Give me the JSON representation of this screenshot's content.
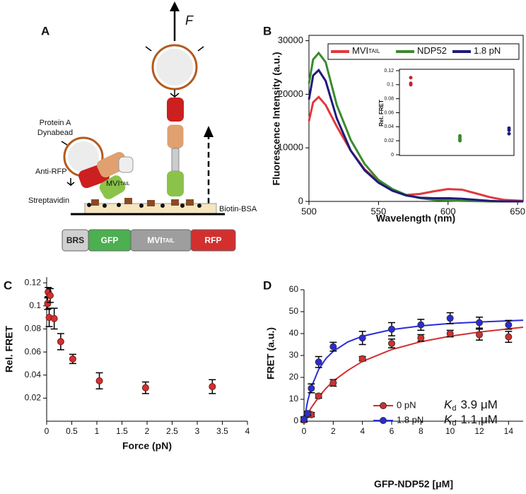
{
  "panel_labels": [
    "A",
    "B",
    "C",
    "D"
  ],
  "diagram": {
    "force_label": "F",
    "bead_label": [
      "Protein A",
      "Dynabead"
    ],
    "antibody_label": "Anti-RFP",
    "motor_label": {
      "text": "MVI",
      "sub": "TAIL"
    },
    "streptavidin_label": "Streptavidin",
    "surface_label": "Biotin-BSA",
    "construct": [
      {
        "text": "BRS",
        "color": "#d0d0d0"
      },
      {
        "text": "GFP",
        "color": "#4caf50"
      },
      {
        "text": "MVI",
        "sub": "TAIL",
        "color": "#9e9e9e"
      },
      {
        "text": "RFP",
        "color": "#d32f2f"
      }
    ]
  },
  "chart_data": [
    {
      "type": "line",
      "xlabel": "Wavelength (nm)",
      "ylabel": "Fluorescence Intensity (a.u.)",
      "x": [
        500,
        503,
        507,
        512,
        520,
        530,
        540,
        550,
        560,
        570,
        580,
        590,
        600,
        610,
        620,
        630,
        640,
        654
      ],
      "series": [
        {
          "name": "MVI",
          "name_sub": "TAIL",
          "color": "#e0393e",
          "values": [
            15000,
            18500,
            19500,
            18000,
            14000,
            9500,
            6000,
            3700,
            2000,
            1200,
            1400,
            1900,
            2300,
            2200,
            1500,
            800,
            300,
            100
          ]
        },
        {
          "name": "NDP52",
          "color": "#3b8a2e",
          "values": [
            22000,
            26500,
            27700,
            26000,
            18000,
            11500,
            7000,
            4000,
            2300,
            1200,
            600,
            300,
            200,
            100,
            50,
            0,
            0,
            0
          ]
        },
        {
          "name": "1.8 pN",
          "color": "#1f1a7a",
          "values": [
            19000,
            23500,
            24500,
            22500,
            15500,
            9500,
            5800,
            3500,
            2000,
            1100,
            700,
            600,
            600,
            500,
            300,
            100,
            0,
            0
          ]
        }
      ],
      "xlim": [
        500,
        654
      ],
      "ylim": [
        0,
        31000
      ],
      "xticks": [
        500,
        550,
        600,
        650
      ],
      "yticks": [
        0,
        10000,
        20000,
        30000
      ],
      "legend": "top"
    },
    {
      "type": "strip",
      "ylabel": "Rel. FRET",
      "ylim": [
        0,
        0.12
      ],
      "yticks": [
        0,
        0.02,
        0.04,
        0.06,
        0.08,
        0.1,
        0.12
      ],
      "groups": [
        {
          "color": "#c0272d",
          "values": [
            0.11,
            0.1,
            0.102
          ]
        },
        {
          "color": "#3b8a2e",
          "values": [
            0.022,
            0.025,
            0.027,
            0.02
          ]
        },
        {
          "color": "#1f1a7a",
          "values": [
            0.03,
            0.035,
            0.038
          ]
        }
      ]
    },
    {
      "type": "errorbar",
      "xlabel": "Force (pN)",
      "ylabel": "Rel. FRET",
      "color": "#d32f2f",
      "x": [
        0.02,
        0.03,
        0.07,
        0.05,
        0.15,
        0.28,
        0.52,
        1.05,
        1.97,
        3.3
      ],
      "values": [
        0.102,
        0.112,
        0.109,
        0.09,
        0.089,
        0.069,
        0.054,
        0.035,
        0.029,
        0.03
      ],
      "errors": [
        0.005,
        0.004,
        0.006,
        0.008,
        0.009,
        0.007,
        0.004,
        0.007,
        0.005,
        0.006
      ],
      "xlim": [
        0,
        4
      ],
      "ylim": [
        0,
        0.125
      ],
      "xticks": [
        0,
        0.5,
        1,
        1.5,
        2,
        2.5,
        3,
        3.5,
        4
      ],
      "yticks": [
        0.02,
        0.04,
        0.06,
        0.08,
        0.1,
        0.12
      ]
    },
    {
      "type": "binding",
      "xlabel": "GFP-NDP52 [μM]",
      "ylabel": "FRET (a.u.)",
      "x": [
        0,
        0.25,
        0.5,
        1,
        2,
        4,
        6,
        8,
        10,
        12,
        14
      ],
      "fit_x": [
        0,
        0.25,
        0.5,
        1,
        1.5,
        2,
        3,
        4,
        6,
        8,
        10,
        12,
        15
      ],
      "series": [
        {
          "name": "0 pN",
          "color": "#d32f2f",
          "values": [
            0.5,
            3,
            3,
            11.5,
            17.5,
            28.5,
            35.5,
            38,
            40,
            39.5,
            38.5
          ],
          "errors": [
            1,
            1,
            1,
            1,
            1.5,
            1,
            2,
            1.5,
            1.5,
            2.5,
            2.5
          ],
          "fit_values": [
            0,
            3.3,
            6.2,
            11,
            15,
            18.3,
            23.2,
            27.3,
            32.7,
            36.3,
            38.8,
            40.7,
            42.9
          ],
          "kd": {
            "symbol": "K",
            "sub": "d",
            "text": "3.9 μM"
          }
        },
        {
          "name": "1.8 pN",
          "color": "#2b2bd9",
          "values": [
            1,
            3.5,
            15,
            27,
            34,
            38,
            42,
            44,
            47,
            45,
            44
          ],
          "errors": [
            1,
            1,
            2,
            2.5,
            2,
            3,
            3,
            2.5,
            2.5,
            2.5,
            2
          ],
          "fit_values": [
            0,
            9.2,
            15.5,
            23.6,
            28.6,
            31.9,
            36.2,
            38.8,
            41.8,
            43.5,
            44.6,
            45.3,
            46.1
          ],
          "kd": {
            "symbol": "K",
            "sub": "d",
            "text": "1.1 μM"
          }
        }
      ],
      "xlim": [
        0,
        15
      ],
      "ylim": [
        0,
        60
      ],
      "xticks": [
        0,
        2,
        4,
        6,
        8,
        10,
        12,
        14
      ],
      "yticks": [
        0,
        10,
        20,
        30,
        40,
        50,
        60
      ]
    }
  ]
}
